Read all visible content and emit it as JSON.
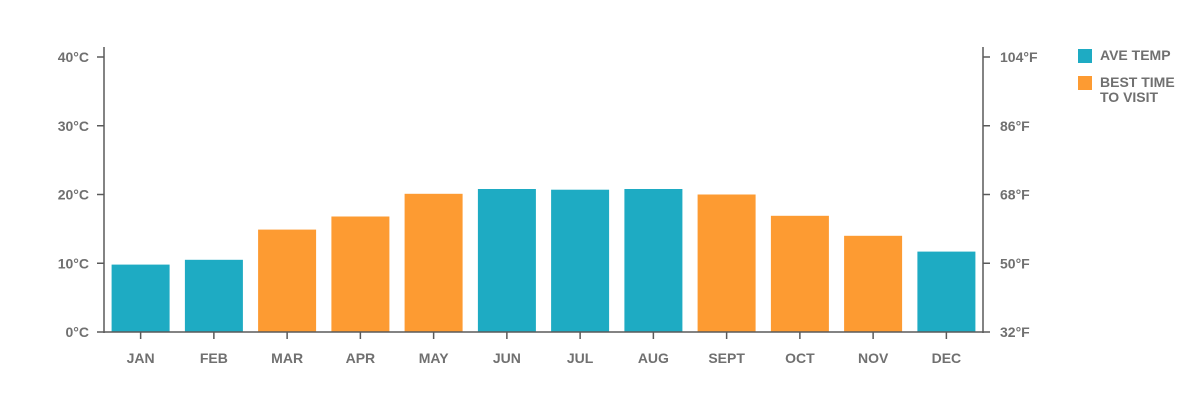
{
  "chart_data": {
    "type": "bar",
    "categories": [
      "JAN",
      "FEB",
      "MAR",
      "APR",
      "MAY",
      "JUN",
      "JUL",
      "AUG",
      "SEPT",
      "OCT",
      "NOV",
      "DEC"
    ],
    "values": [
      9.8,
      10.5,
      14.9,
      16.8,
      20.1,
      20.8,
      20.7,
      20.8,
      20.0,
      16.9,
      14.0,
      11.7
    ],
    "highlight": [
      false,
      false,
      true,
      true,
      true,
      false,
      false,
      false,
      true,
      true,
      true,
      false
    ],
    "ylim": [
      0,
      40
    ],
    "y_ticks_left": [
      "0°C",
      "10°C",
      "20°C",
      "30°C",
      "40°C"
    ],
    "y_ticks_right": [
      "32°F",
      "50°F",
      "68°F",
      "86°F",
      "104°F"
    ],
    "grid": false,
    "legend_position": "right",
    "colors": {
      "ave_temp": "#1eabc3",
      "best_time": "#fd9b32",
      "axis": "#5a5a5a"
    }
  },
  "legend": {
    "ave_temp_label": "AVE TEMP",
    "best_time_label": "BEST TIME TO VISIT"
  }
}
